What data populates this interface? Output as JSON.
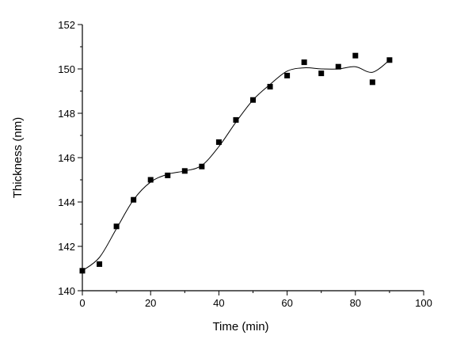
{
  "chart_data": {
    "type": "scatter",
    "title": "",
    "xlabel": "Time (min)",
    "ylabel": "Thickness (nm)",
    "xlim": [
      0,
      100
    ],
    "ylim": [
      140,
      152
    ],
    "xticks": [
      0,
      20,
      40,
      60,
      80,
      100
    ],
    "yticks": [
      140,
      142,
      144,
      146,
      148,
      150,
      152
    ],
    "x_minor_step": 10,
    "y_minor_step": 1,
    "grid": false,
    "legend": "none",
    "series": [
      {
        "marker": "square",
        "color": "#000000",
        "x": [
          0,
          5,
          10,
          15,
          20,
          25,
          30,
          35,
          40,
          45,
          50,
          55,
          60,
          65,
          70,
          75,
          80,
          85,
          90
        ],
        "y": [
          140.9,
          141.2,
          142.9,
          144.1,
          145.0,
          145.2,
          145.4,
          145.6,
          146.7,
          147.7,
          148.6,
          149.2,
          149.7,
          150.3,
          149.8,
          150.1,
          150.6,
          149.4,
          150.4
        ]
      }
    ],
    "fit_curve": {
      "style": "smooth spline",
      "color": "#000000",
      "x": [
        0,
        5,
        10,
        15,
        20,
        25,
        30,
        35,
        40,
        45,
        50,
        55,
        60,
        65,
        70,
        75,
        80,
        85,
        90
      ],
      "y": [
        140.9,
        141.5,
        142.8,
        144.1,
        144.9,
        145.25,
        145.4,
        145.65,
        146.5,
        147.6,
        148.6,
        149.3,
        149.9,
        150.05,
        150.0,
        150.0,
        150.1,
        149.85,
        150.4
      ]
    }
  }
}
